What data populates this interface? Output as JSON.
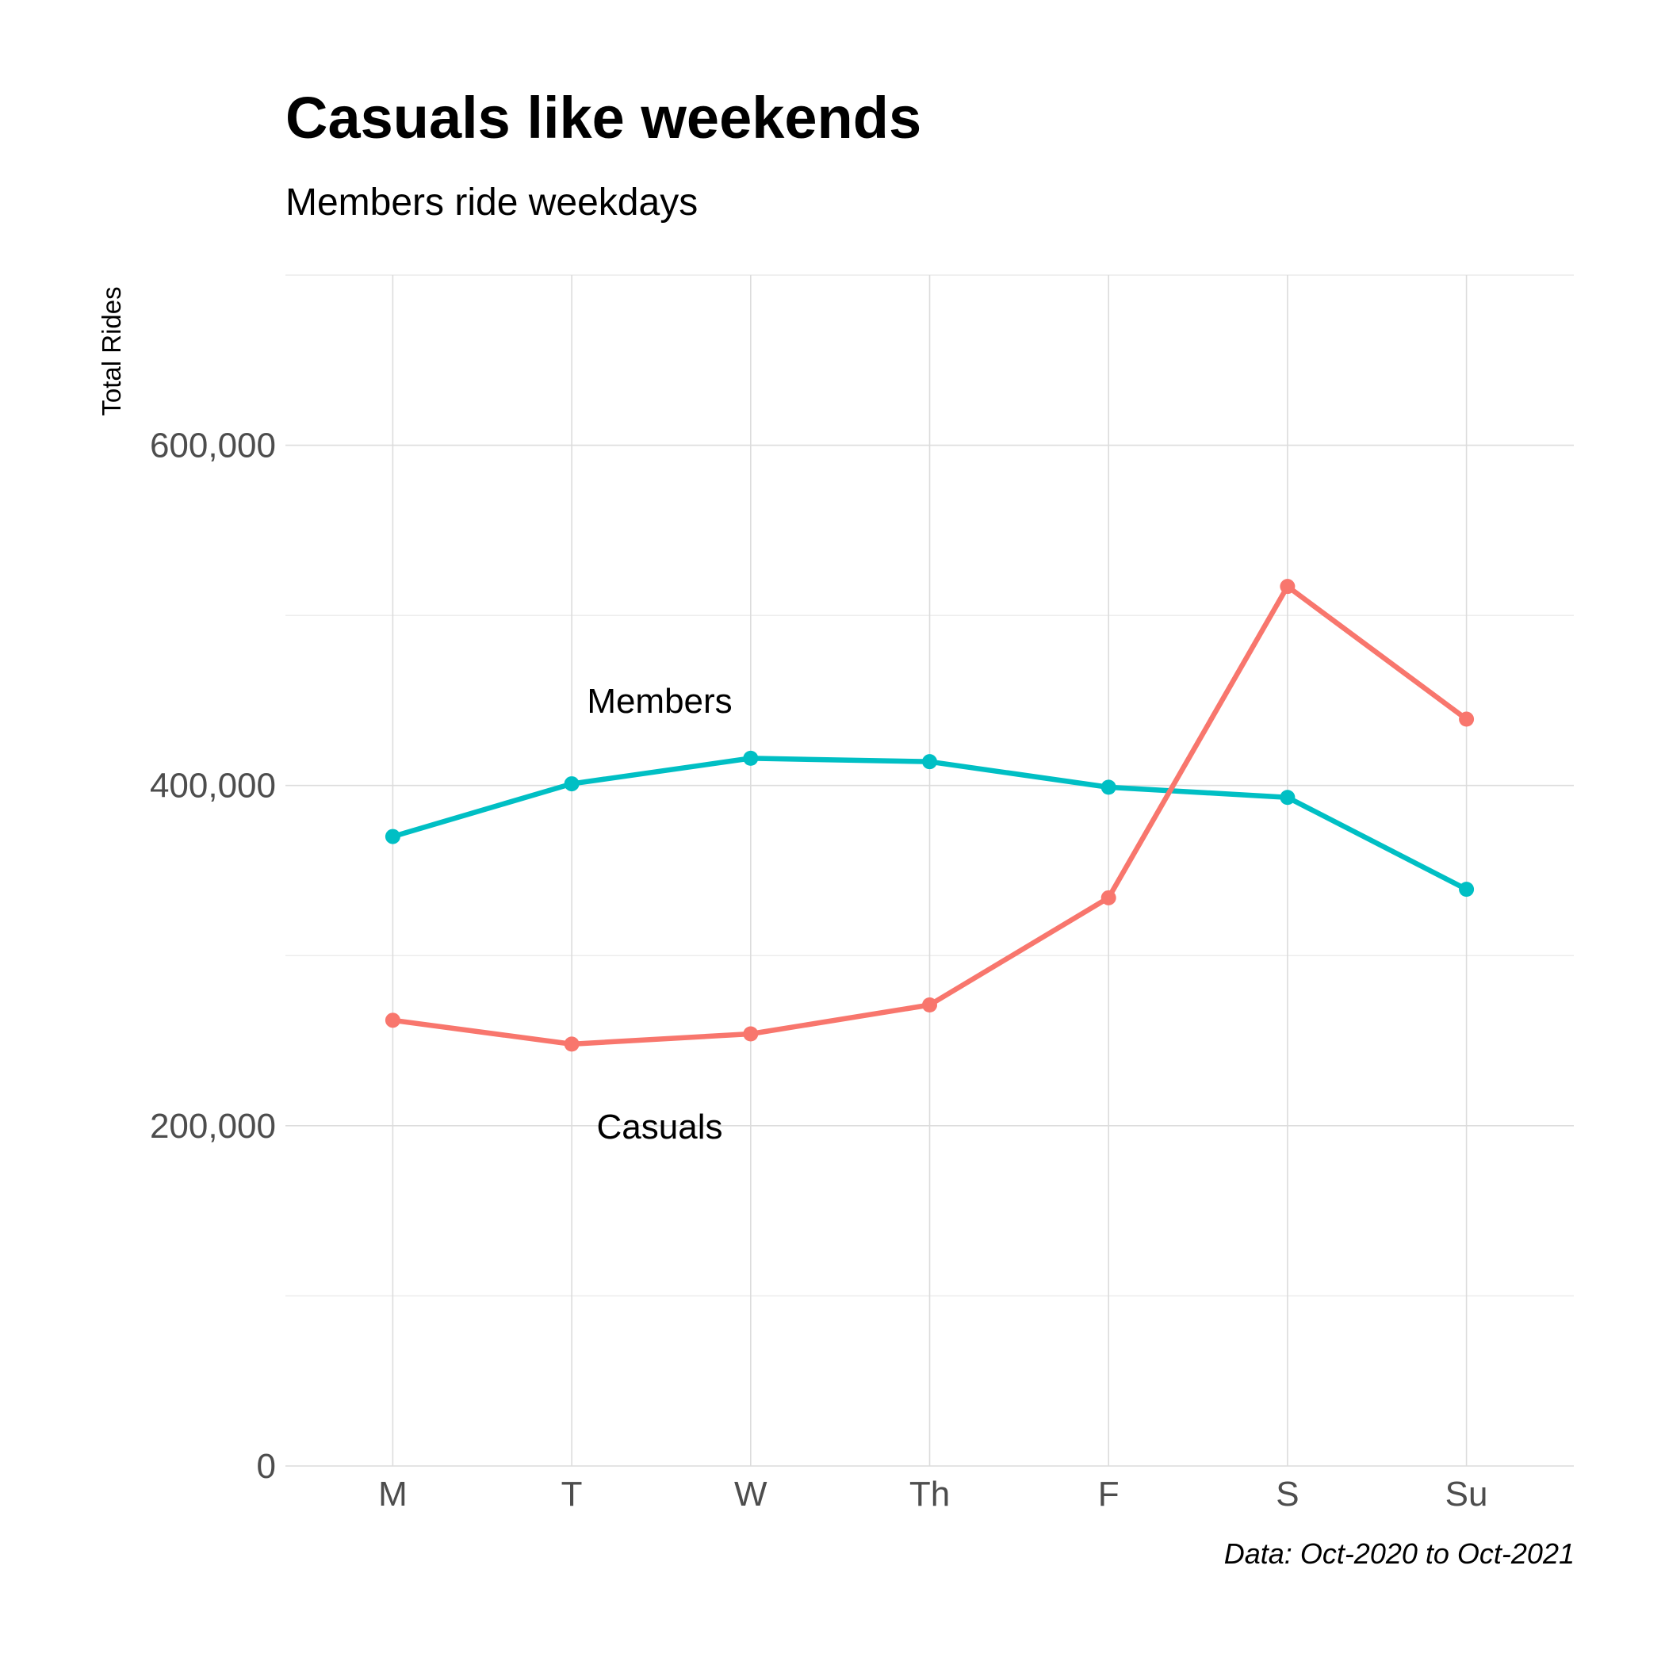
{
  "chart_data": {
    "type": "line",
    "title": "Casuals like weekends",
    "subtitle": "Members ride weekdays",
    "caption": "Data: Oct-2020 to Oct-2021",
    "xlabel": "",
    "ylabel": "Total Rides",
    "categories": [
      "M",
      "T",
      "W",
      "Th",
      "F",
      "S",
      "Su"
    ],
    "ylim": [
      0,
      700000
    ],
    "yticks": [
      0,
      200000,
      400000,
      600000
    ],
    "ytick_labels": [
      "0",
      "200,000",
      "400,000",
      "600,000"
    ],
    "grid": true,
    "legend": "none (direct labels)",
    "series": [
      {
        "name": "Members",
        "color": "#00BFC4",
        "values": [
          370000,
          401000,
          416000,
          414000,
          399000,
          393000,
          339000
        ]
      },
      {
        "name": "Casuals",
        "color": "#F8766D",
        "values": [
          262000,
          248000,
          254000,
          271000,
          334000,
          517000,
          439000
        ]
      }
    ]
  }
}
